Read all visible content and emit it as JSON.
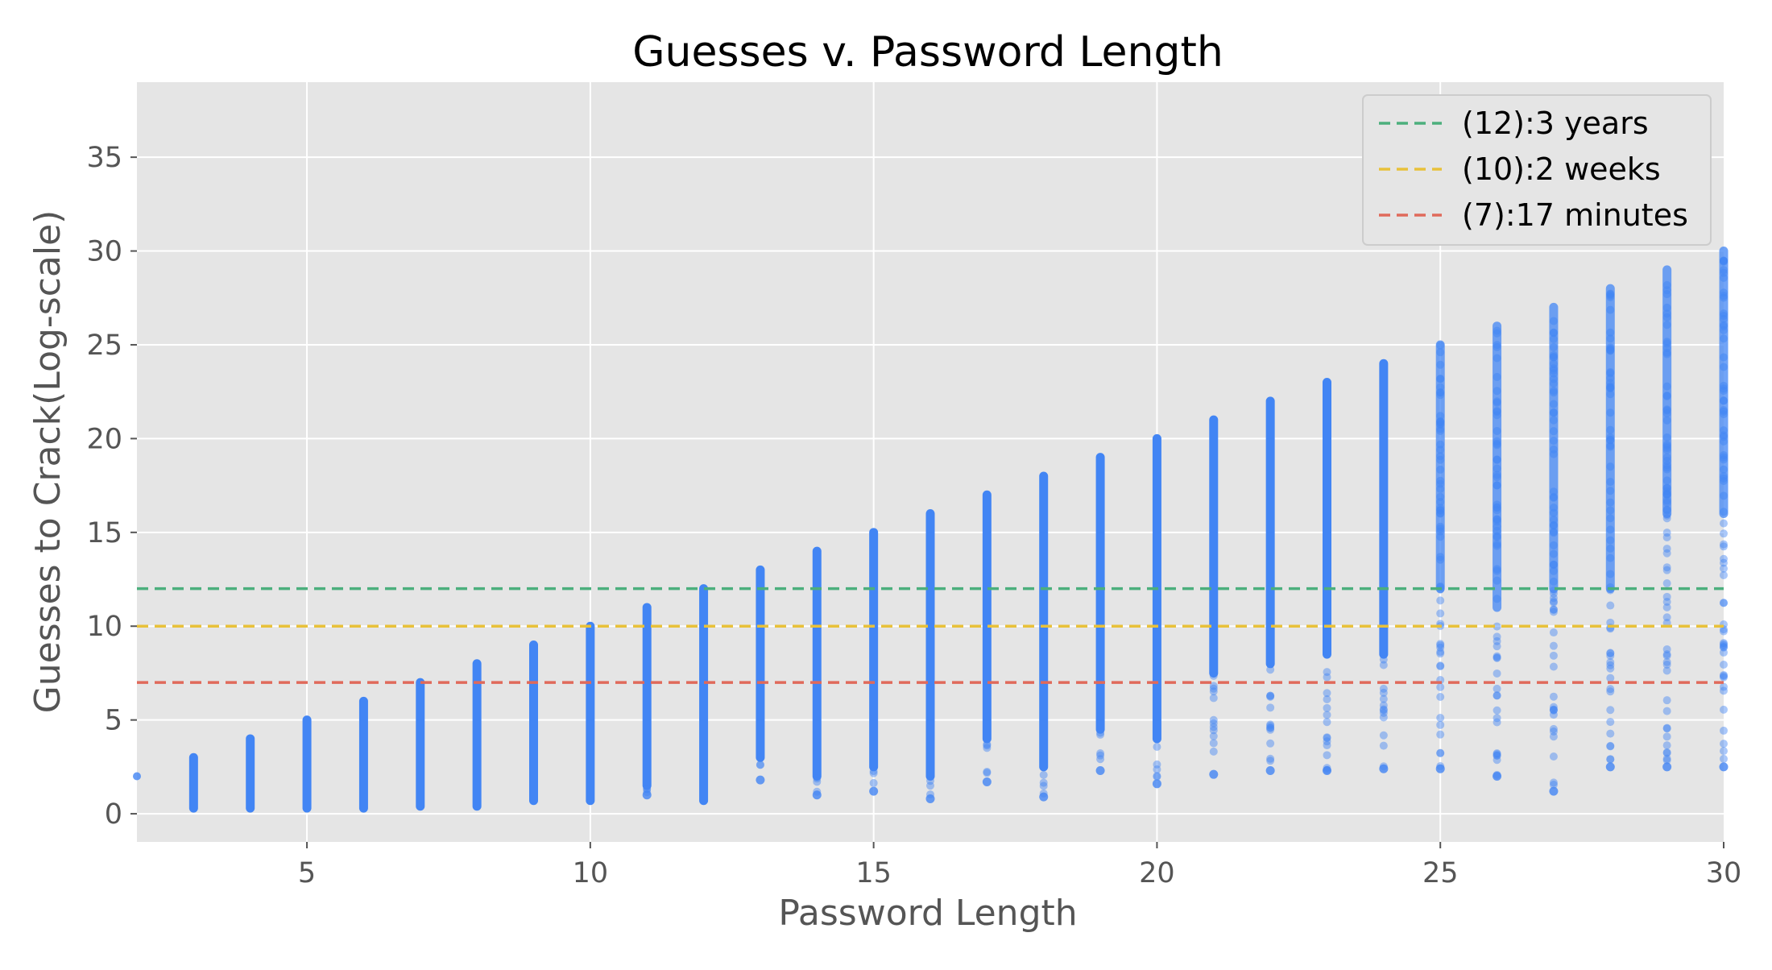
{
  "chart_data": {
    "type": "scatter",
    "title": "Guesses v. Password Length",
    "xlabel": "Password Length",
    "ylabel": "Guesses to Crack(Log-scale)",
    "xlim": [
      2,
      30
    ],
    "ylim": [
      -1.5,
      39
    ],
    "xticks": [
      5,
      10,
      15,
      20,
      25,
      30
    ],
    "yticks": [
      0,
      5,
      10,
      15,
      20,
      25,
      30,
      35
    ],
    "grid": true,
    "legend_position": "top-right",
    "point_color": "#4285f4",
    "series": [
      {
        "x": [
          3,
          4,
          5,
          6,
          7,
          8,
          9,
          10,
          11,
          12,
          13,
          14,
          15,
          16,
          17,
          18,
          19,
          20,
          21,
          22,
          23,
          24,
          25,
          26,
          27,
          28,
          29,
          30
        ],
        "y_min": [
          0.3,
          0.3,
          0.3,
          0.3,
          0.4,
          0.4,
          0.7,
          0.7,
          1.0,
          0.7,
          1.8,
          1.0,
          1.2,
          0.8,
          1.7,
          0.9,
          2.3,
          1.6,
          2.1,
          2.3,
          2.3,
          2.4,
          2.4,
          2.0,
          1.2,
          2.5,
          2.5,
          2.5
        ],
        "y_max": [
          3,
          4,
          5,
          6,
          7,
          8,
          9,
          10,
          11,
          12,
          13,
          14,
          15,
          16,
          17,
          18,
          19,
          20,
          21,
          22,
          23,
          24,
          25,
          26,
          27,
          28,
          29,
          30
        ],
        "dense_from": [
          0.3,
          0.3,
          0.3,
          0.3,
          0.4,
          0.4,
          0.7,
          0.7,
          1.5,
          0.7,
          3.0,
          2.0,
          2.5,
          2.0,
          4.0,
          2.5,
          4.5,
          4.0,
          7.5,
          8.0,
          8.5,
          8.5,
          12.0,
          11.0,
          12.0,
          12.0,
          16.0,
          16.0
        ]
      }
    ],
    "reference_lines": [
      {
        "label": "(12):3 years",
        "y": 12,
        "color": "#4caf7d"
      },
      {
        "label": "(10):2 weeks",
        "y": 10,
        "color": "#e8c13a"
      },
      {
        "label": "(7):17 minutes",
        "y": 7,
        "color": "#e06a5b"
      }
    ]
  }
}
